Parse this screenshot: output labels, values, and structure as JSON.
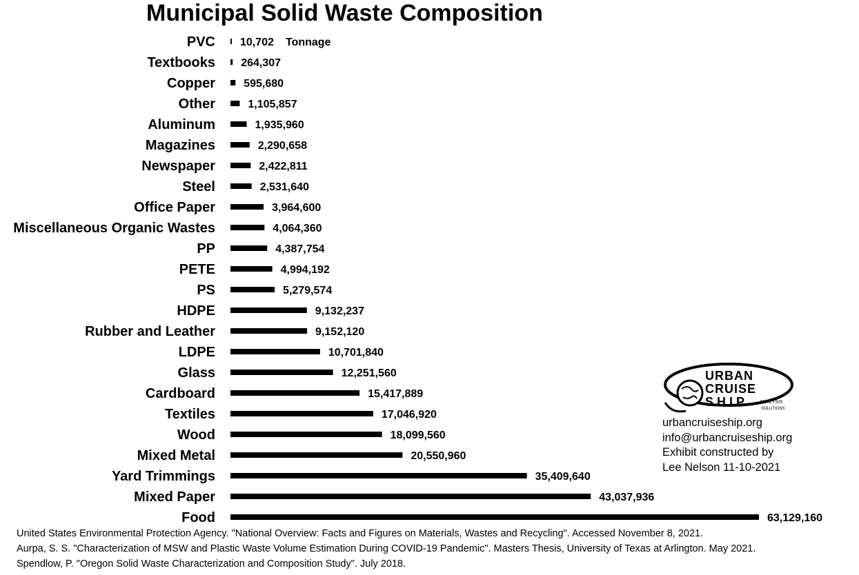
{
  "chart_data": {
    "type": "bar",
    "orientation": "horizontal",
    "title": "Municipal Solid Waste Composition",
    "unit_label": "Tonnage",
    "categories": [
      "PVC",
      "Textbooks",
      "Copper",
      "Other",
      "Aluminum",
      "Magazines",
      "Newspaper",
      "Steel",
      "Office Paper",
      "Miscellaneous Organic Wastes",
      "PP",
      "PETE",
      "PS",
      "HDPE",
      "Rubber and Leather",
      "LDPE",
      "Glass",
      "Cardboard",
      "Textiles",
      "Wood",
      "Mixed Metal",
      "Yard Trimmings",
      "Mixed Paper",
      "Food"
    ],
    "values": [
      10702,
      264307,
      595680,
      1105857,
      1935960,
      2290658,
      2422811,
      2531640,
      3964600,
      4064360,
      4387754,
      4994192,
      5279574,
      9132237,
      9152120,
      10701840,
      12251560,
      15417889,
      17046920,
      18099560,
      20550960,
      35409640,
      43037936,
      63129160
    ],
    "value_labels": [
      "10,702",
      "264,307",
      "595,680",
      "1,105,857",
      "1,935,960",
      "2,290,658",
      "2,422,811",
      "2,531,640",
      "3,964,600",
      "4,064,360",
      "4,387,754",
      "4,994,192",
      "5,279,574",
      "9,132,237",
      "9,152,120",
      "10,701,840",
      "12,251,560",
      "15,417,889",
      "17,046,920",
      "18,099,560",
      "20,550,960",
      "35,409,640",
      "43,037,936",
      "63,129,160"
    ],
    "xlim": [
      0,
      63129160
    ],
    "grid": false,
    "legend": "none",
    "bar_color": "#000000"
  },
  "logo": {
    "line1": "URBAN",
    "line2": "CRUISE",
    "line3": "SHIP",
    "tag1": "ANALYSIS",
    "tag2": "SOLUTIONS"
  },
  "contact": {
    "website": "urbancruiseship.org",
    "email": "info@urbancruiseship.org",
    "credit_line1": "Exhibit constructed by",
    "credit_line2": "Lee Nelson 11-10-2021"
  },
  "sources": [
    "United States Environmental Protection Agency. \"National Overview: Facts and Figures on Materials, Wastes and Recycling\". Accessed November 8, 2021.",
    "Aurpa, S. S. \"Characterization of MSW and Plastic Waste Volume Estimation During COVID-19 Pandemic\". Masters Thesis, University of Texas at Arlington. May 2021.",
    "Spendlow, P. \"Oregon Solid Waste Characterization and Composition Study\". July 2018."
  ]
}
